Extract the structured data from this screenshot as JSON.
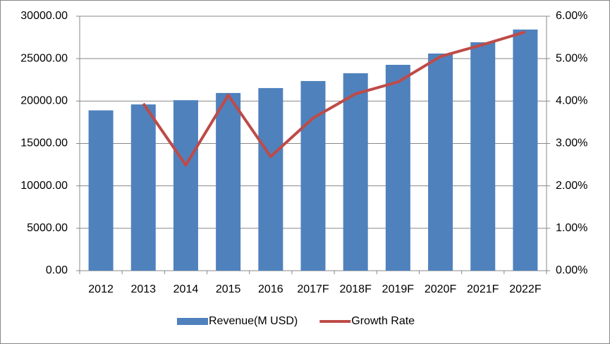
{
  "chart_data": {
    "type": "bar",
    "categories": [
      "2012",
      "2013",
      "2014",
      "2015",
      "2016",
      "2017F",
      "2018F",
      "2019F",
      "2020F",
      "2021F",
      "2022F"
    ],
    "series": [
      {
        "name": "Revenue(M USD)",
        "type": "bar",
        "color": "#4f81bd",
        "values": [
          18900,
          19600,
          20100,
          20950,
          21530,
          22360,
          23280,
          24270,
          25600,
          26930,
          28430
        ]
      },
      {
        "name": "Growth Rate",
        "type": "line",
        "axis": "y2",
        "color": "#be4b48",
        "values": [
          null,
          3.94,
          2.49,
          4.14,
          2.69,
          3.6,
          4.17,
          4.45,
          5.05,
          5.33,
          5.63
        ]
      }
    ],
    "ylim": [
      0,
      30000
    ],
    "yticks": [
      {
        "value": 0,
        "label": "0.00"
      },
      {
        "value": 5000,
        "label": "5000.00"
      },
      {
        "value": 10000,
        "label": "10000.00"
      },
      {
        "value": 15000,
        "label": "15000.00"
      },
      {
        "value": 20000,
        "label": "20000.00"
      },
      {
        "value": 25000,
        "label": "25000.00"
      },
      {
        "value": 30000,
        "label": "30000.00"
      }
    ],
    "y2lim": [
      0,
      6
    ],
    "y2ticks": [
      {
        "value": 0,
        "label": "0.00%"
      },
      {
        "value": 1,
        "label": "1.00%"
      },
      {
        "value": 2,
        "label": "2.00%"
      },
      {
        "value": 3,
        "label": "3.00%"
      },
      {
        "value": 4,
        "label": "4.00%"
      },
      {
        "value": 5,
        "label": "5.00%"
      },
      {
        "value": 6,
        "label": "6.00%"
      }
    ],
    "grid": true,
    "legend": "bottom"
  }
}
